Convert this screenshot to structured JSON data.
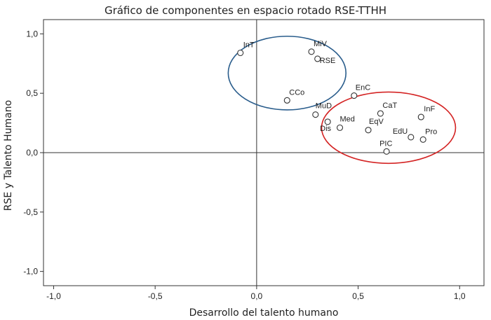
{
  "chart_data": {
    "type": "scatter",
    "title": "Gráfico de componentes en espacio rotado RSE-TTHH",
    "xlabel": "Desarrollo del talento humano",
    "ylabel": "RSE y Talento Humano",
    "xlim": [
      -1.05,
      1.12
    ],
    "ylim": [
      -1.12,
      1.12
    ],
    "x_ticks": [
      -1.0,
      -0.5,
      0.0,
      0.5,
      1.0
    ],
    "x_tick_labels": [
      "-1,0",
      "-0,5",
      "0,0",
      "0,5",
      "1,0"
    ],
    "y_ticks": [
      1.0,
      0.5,
      0.0,
      -0.5,
      -1.0
    ],
    "y_tick_labels": [
      "1,0",
      "0,5",
      "0,0",
      "-0,5",
      "-1,0"
    ],
    "reference_lines": {
      "x": 0,
      "y": 0
    },
    "points": [
      {
        "label": "InT",
        "x": -0.08,
        "y": 0.84
      },
      {
        "label": "MiV",
        "x": 0.27,
        "y": 0.85
      },
      {
        "label": "RSE",
        "x": 0.3,
        "y": 0.79
      },
      {
        "label": "CCo",
        "x": 0.15,
        "y": 0.44
      },
      {
        "label": "EnC",
        "x": 0.48,
        "y": 0.48
      },
      {
        "label": "CaT",
        "x": 0.61,
        "y": 0.33
      },
      {
        "label": "InF",
        "x": 0.81,
        "y": 0.3
      },
      {
        "label": "MuD",
        "x": 0.29,
        "y": 0.32
      },
      {
        "label": "Med",
        "x": 0.41,
        "y": 0.21
      },
      {
        "label": "Dis",
        "x": 0.35,
        "y": 0.26
      },
      {
        "label": "EqV",
        "x": 0.55,
        "y": 0.19
      },
      {
        "label": "EdU",
        "x": 0.76,
        "y": 0.13
      },
      {
        "label": "Pro",
        "x": 0.82,
        "y": 0.11
      },
      {
        "label": "PIC",
        "x": 0.64,
        "y": 0.01
      }
    ],
    "groups": [
      {
        "color": "#2a5d8c",
        "cx": 0.15,
        "cy": 0.67,
        "rx": 0.29,
        "ry": 0.31
      },
      {
        "color": "#d42424",
        "cx": 0.65,
        "cy": 0.21,
        "rx": 0.33,
        "ry": 0.3
      }
    ],
    "grid": false,
    "legend": "none"
  }
}
